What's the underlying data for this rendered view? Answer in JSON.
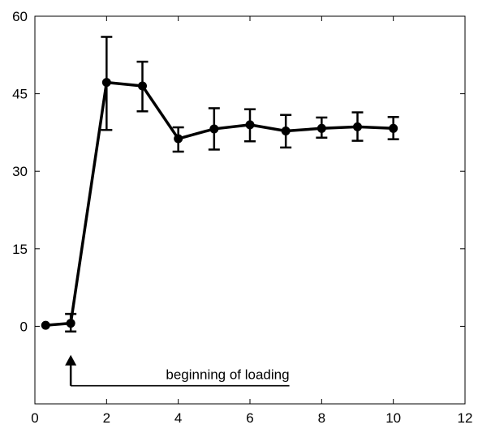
{
  "chart_data": {
    "type": "line",
    "title": "",
    "xlabel": "",
    "ylabel": "",
    "xlim": [
      0,
      12
    ],
    "ylim": [
      -15,
      60
    ],
    "xticks": [
      0,
      2,
      4,
      6,
      8,
      10,
      12
    ],
    "yticks": [
      0,
      15,
      30,
      45,
      60
    ],
    "grid": false,
    "series": [
      {
        "x": [
          0.3,
          1,
          2,
          3,
          4,
          5,
          6,
          7,
          8,
          9,
          10
        ],
        "y": [
          0.2,
          0.6,
          47.2,
          46.5,
          36.3,
          38.2,
          39.0,
          37.8,
          38.3,
          38.6,
          38.3
        ],
        "err_upper": [
          null,
          2.4,
          56.0,
          51.2,
          38.5,
          42.2,
          42.0,
          40.9,
          40.4,
          41.4,
          40.5
        ],
        "err_lower": [
          null,
          -1.0,
          38.0,
          41.6,
          33.8,
          34.2,
          35.8,
          34.6,
          36.5,
          35.9,
          36.2
        ]
      }
    ],
    "annotations": [
      {
        "text": "beginning of loading",
        "arrow_x": 1,
        "arrow_y_from": -11.5,
        "arrow_y_to": -6,
        "line_x_from": 1,
        "line_x_to": 7.1,
        "line_y": -11.5
      }
    ]
  }
}
